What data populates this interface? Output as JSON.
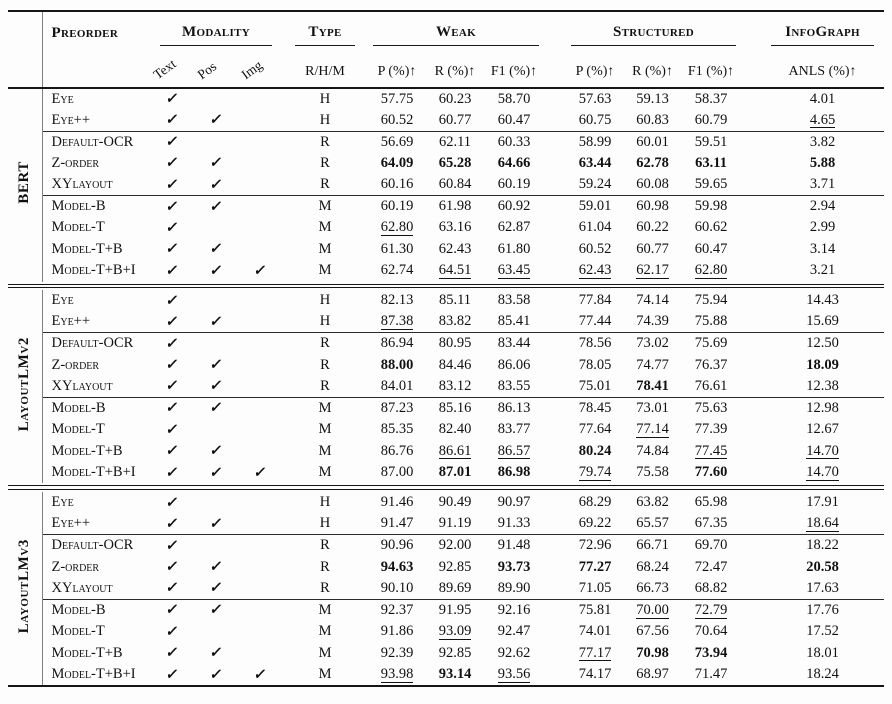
{
  "colors": {
    "ink": "#111111",
    "rule": "#1a1a1a"
  },
  "checkmark": "✓",
  "header": {
    "preorder": "Preorder",
    "modality": "Modality",
    "modality_cols": [
      "Text",
      "Pos",
      "Img"
    ],
    "type": "Type",
    "type_sub": "R/H/M",
    "weak": "Weak",
    "weak_sub": [
      "P (%)↑",
      "R (%)↑",
      "F1 (%)↑"
    ],
    "structured": "Structured",
    "structured_sub": [
      "P (%)↑",
      "R (%)↑",
      "F1 (%)↑"
    ],
    "infograph": "InfoGraph",
    "anls_sub": "ANLS (%)↑"
  },
  "style_key": {
    "b": "bold = best",
    "u": "underline = second best"
  },
  "groups": [
    {
      "name": "BERT",
      "sections": [
        {
          "rows": [
            {
              "label": "Eye",
              "mod": [
                1,
                0,
                0
              ],
              "type": "H",
              "w": [
                "57.75",
                "60.23",
                "58.70"
              ],
              "ws": [
                "",
                "",
                ""
              ],
              "s": [
                "57.63",
                "59.13",
                "58.37"
              ],
              "ss": [
                "",
                "",
                ""
              ],
              "a": "4.01",
              "as": ""
            },
            {
              "label": "Eye++",
              "mod": [
                1,
                1,
                0
              ],
              "type": "H",
              "w": [
                "60.52",
                "60.77",
                "60.47"
              ],
              "ws": [
                "",
                "",
                ""
              ],
              "s": [
                "60.75",
                "60.83",
                "60.79"
              ],
              "ss": [
                "",
                "",
                ""
              ],
              "a": "4.65",
              "as": "u"
            }
          ]
        },
        {
          "rows": [
            {
              "label": "Default-OCR",
              "mod": [
                1,
                0,
                0
              ],
              "type": "R",
              "w": [
                "56.69",
                "62.11",
                "60.33"
              ],
              "ws": [
                "",
                "",
                ""
              ],
              "s": [
                "58.99",
                "60.01",
                "59.51"
              ],
              "ss": [
                "",
                "",
                ""
              ],
              "a": "3.82",
              "as": ""
            },
            {
              "label": "Z-order",
              "mod": [
                1,
                1,
                0
              ],
              "type": "R",
              "w": [
                "64.09",
                "65.28",
                "64.66"
              ],
              "ws": [
                "b",
                "b",
                "b"
              ],
              "s": [
                "63.44",
                "62.78",
                "63.11"
              ],
              "ss": [
                "b",
                "b",
                "b"
              ],
              "a": "5.88",
              "as": "b"
            },
            {
              "label": "XYlayout",
              "mod": [
                1,
                1,
                0
              ],
              "type": "R",
              "w": [
                "60.16",
                "60.84",
                "60.19"
              ],
              "ws": [
                "",
                "",
                ""
              ],
              "s": [
                "59.24",
                "60.08",
                "59.65"
              ],
              "ss": [
                "",
                "",
                ""
              ],
              "a": "3.71",
              "as": ""
            }
          ]
        },
        {
          "rows": [
            {
              "label": "Model-B",
              "mod": [
                1,
                1,
                0
              ],
              "type": "M",
              "w": [
                "60.19",
                "61.98",
                "60.92"
              ],
              "ws": [
                "",
                "",
                ""
              ],
              "s": [
                "59.01",
                "60.98",
                "59.98"
              ],
              "ss": [
                "",
                "",
                ""
              ],
              "a": "2.94",
              "as": ""
            },
            {
              "label": "Model-T",
              "mod": [
                1,
                0,
                0
              ],
              "type": "M",
              "w": [
                "62.80",
                "63.16",
                "62.87"
              ],
              "ws": [
                "u",
                "",
                ""
              ],
              "s": [
                "61.04",
                "60.22",
                "60.62"
              ],
              "ss": [
                "",
                "",
                ""
              ],
              "a": "2.99",
              "as": ""
            },
            {
              "label": "Model-T+B",
              "mod": [
                1,
                1,
                0
              ],
              "type": "M",
              "w": [
                "61.30",
                "62.43",
                "61.80"
              ],
              "ws": [
                "",
                "",
                ""
              ],
              "s": [
                "60.52",
                "60.77",
                "60.47"
              ],
              "ss": [
                "",
                "",
                ""
              ],
              "a": "3.14",
              "as": ""
            },
            {
              "label": "Model-T+B+I",
              "mod": [
                1,
                1,
                1
              ],
              "type": "M",
              "w": [
                "62.74",
                "64.51",
                "63.45"
              ],
              "ws": [
                "",
                "u",
                "u"
              ],
              "s": [
                "62.43",
                "62.17",
                "62.80"
              ],
              "ss": [
                "u",
                "u",
                "u"
              ],
              "a": "3.21",
              "as": ""
            }
          ]
        }
      ]
    },
    {
      "name": "LayoutLMv2",
      "sections": [
        {
          "rows": [
            {
              "label": "Eye",
              "mod": [
                1,
                0,
                0
              ],
              "type": "H",
              "w": [
                "82.13",
                "85.11",
                "83.58"
              ],
              "ws": [
                "",
                "",
                ""
              ],
              "s": [
                "77.84",
                "74.14",
                "75.94"
              ],
              "ss": [
                "",
                "",
                ""
              ],
              "a": "14.43",
              "as": ""
            },
            {
              "label": "Eye++",
              "mod": [
                1,
                1,
                0
              ],
              "type": "H",
              "w": [
                "87.38",
                "83.82",
                "85.41"
              ],
              "ws": [
                "u",
                "",
                ""
              ],
              "s": [
                "77.44",
                "74.39",
                "75.88"
              ],
              "ss": [
                "",
                "",
                ""
              ],
              "a": "15.69",
              "as": ""
            }
          ]
        },
        {
          "rows": [
            {
              "label": "Default-OCR",
              "mod": [
                1,
                0,
                0
              ],
              "type": "R",
              "w": [
                "86.94",
                "80.95",
                "83.44"
              ],
              "ws": [
                "",
                "",
                ""
              ],
              "s": [
                "78.56",
                "73.02",
                "75.69"
              ],
              "ss": [
                "",
                "",
                ""
              ],
              "a": "12.50",
              "as": ""
            },
            {
              "label": "Z-order",
              "mod": [
                1,
                1,
                0
              ],
              "type": "R",
              "w": [
                "88.00",
                "84.46",
                "86.06"
              ],
              "ws": [
                "b",
                "",
                ""
              ],
              "s": [
                "78.05",
                "74.77",
                "76.37"
              ],
              "ss": [
                "",
                "",
                ""
              ],
              "a": "18.09",
              "as": "b"
            },
            {
              "label": "XYlayout",
              "mod": [
                1,
                1,
                0
              ],
              "type": "R",
              "w": [
                "84.01",
                "83.12",
                "83.55"
              ],
              "ws": [
                "",
                "",
                ""
              ],
              "s": [
                "75.01",
                "78.41",
                "76.61"
              ],
              "ss": [
                "",
                "b",
                ""
              ],
              "a": "12.38",
              "as": ""
            }
          ]
        },
        {
          "rows": [
            {
              "label": "Model-B",
              "mod": [
                1,
                1,
                0
              ],
              "type": "M",
              "w": [
                "87.23",
                "85.16",
                "86.13"
              ],
              "ws": [
                "",
                "",
                ""
              ],
              "s": [
                "78.45",
                "73.01",
                "75.63"
              ],
              "ss": [
                "",
                "",
                ""
              ],
              "a": "12.98",
              "as": ""
            },
            {
              "label": "Model-T",
              "mod": [
                1,
                0,
                0
              ],
              "type": "M",
              "w": [
                "85.35",
                "82.40",
                "83.77"
              ],
              "ws": [
                "",
                "",
                ""
              ],
              "s": [
                "77.64",
                "77.14",
                "77.39"
              ],
              "ss": [
                "",
                "u",
                ""
              ],
              "a": "12.67",
              "as": ""
            },
            {
              "label": "Model-T+B",
              "mod": [
                1,
                1,
                0
              ],
              "type": "M",
              "w": [
                "86.76",
                "86.61",
                "86.57"
              ],
              "ws": [
                "",
                "u",
                "u"
              ],
              "s": [
                "80.24",
                "74.84",
                "77.45"
              ],
              "ss": [
                "b",
                "",
                "u"
              ],
              "a": "14.70",
              "as": "u"
            },
            {
              "label": "Model-T+B+I",
              "mod": [
                1,
                1,
                1
              ],
              "type": "M",
              "w": [
                "87.00",
                "87.01",
                "86.98"
              ],
              "ws": [
                "",
                "b",
                "b"
              ],
              "s": [
                "79.74",
                "75.58",
                "77.60"
              ],
              "ss": [
                "u",
                "",
                "b"
              ],
              "a": "14.70",
              "as": "u"
            }
          ]
        }
      ]
    },
    {
      "name": "LayoutLMv3",
      "sections": [
        {
          "rows": [
            {
              "label": "Eye",
              "mod": [
                1,
                0,
                0
              ],
              "type": "H",
              "w": [
                "91.46",
                "90.49",
                "90.97"
              ],
              "ws": [
                "",
                "",
                ""
              ],
              "s": [
                "68.29",
                "63.82",
                "65.98"
              ],
              "ss": [
                "",
                "",
                ""
              ],
              "a": "17.91",
              "as": ""
            },
            {
              "label": "Eye++",
              "mod": [
                1,
                1,
                0
              ],
              "type": "H",
              "w": [
                "91.47",
                "91.19",
                "91.33"
              ],
              "ws": [
                "",
                "",
                ""
              ],
              "s": [
                "69.22",
                "65.57",
                "67.35"
              ],
              "ss": [
                "",
                "",
                ""
              ],
              "a": "18.64",
              "as": "u"
            }
          ]
        },
        {
          "rows": [
            {
              "label": "Default-OCR",
              "mod": [
                1,
                0,
                0
              ],
              "type": "R",
              "w": [
                "90.96",
                "92.00",
                "91.48"
              ],
              "ws": [
                "",
                "",
                ""
              ],
              "s": [
                "72.96",
                "66.71",
                "69.70"
              ],
              "ss": [
                "",
                "",
                ""
              ],
              "a": "18.22",
              "as": ""
            },
            {
              "label": "Z-order",
              "mod": [
                1,
                1,
                0
              ],
              "type": "R",
              "w": [
                "94.63",
                "92.85",
                "93.73"
              ],
              "ws": [
                "b",
                "",
                "b"
              ],
              "s": [
                "77.27",
                "68.24",
                "72.47"
              ],
              "ss": [
                "b",
                "",
                ""
              ],
              "a": "20.58",
              "as": "b"
            },
            {
              "label": "XYlayout",
              "mod": [
                1,
                1,
                0
              ],
              "type": "R",
              "w": [
                "90.10",
                "89.69",
                "89.90"
              ],
              "ws": [
                "",
                "",
                ""
              ],
              "s": [
                "71.05",
                "66.73",
                "68.82"
              ],
              "ss": [
                "",
                "",
                ""
              ],
              "a": "17.63",
              "as": ""
            }
          ]
        },
        {
          "rows": [
            {
              "label": "Model-B",
              "mod": [
                1,
                1,
                0
              ],
              "type": "M",
              "w": [
                "92.37",
                "91.95",
                "92.16"
              ],
              "ws": [
                "",
                "",
                ""
              ],
              "s": [
                "75.81",
                "70.00",
                "72.79"
              ],
              "ss": [
                "",
                "u",
                "u"
              ],
              "a": "17.76",
              "as": ""
            },
            {
              "label": "Model-T",
              "mod": [
                1,
                0,
                0
              ],
              "type": "M",
              "w": [
                "91.86",
                "93.09",
                "92.47"
              ],
              "ws": [
                "",
                "u",
                ""
              ],
              "s": [
                "74.01",
                "67.56",
                "70.64"
              ],
              "ss": [
                "",
                "",
                ""
              ],
              "a": "17.52",
              "as": ""
            },
            {
              "label": "Model-T+B",
              "mod": [
                1,
                1,
                0
              ],
              "type": "M",
              "w": [
                "92.39",
                "92.85",
                "92.62"
              ],
              "ws": [
                "",
                "",
                ""
              ],
              "s": [
                "77.17",
                "70.98",
                "73.94"
              ],
              "ss": [
                "u",
                "b",
                "b"
              ],
              "a": "18.01",
              "as": ""
            },
            {
              "label": "Model-T+B+I",
              "mod": [
                1,
                1,
                1
              ],
              "type": "M",
              "w": [
                "93.98",
                "93.14",
                "93.56"
              ],
              "ws": [
                "u",
                "b",
                "u"
              ],
              "s": [
                "74.17",
                "68.97",
                "71.47"
              ],
              "ss": [
                "",
                "",
                ""
              ],
              "a": "18.24",
              "as": ""
            }
          ]
        }
      ]
    }
  ]
}
